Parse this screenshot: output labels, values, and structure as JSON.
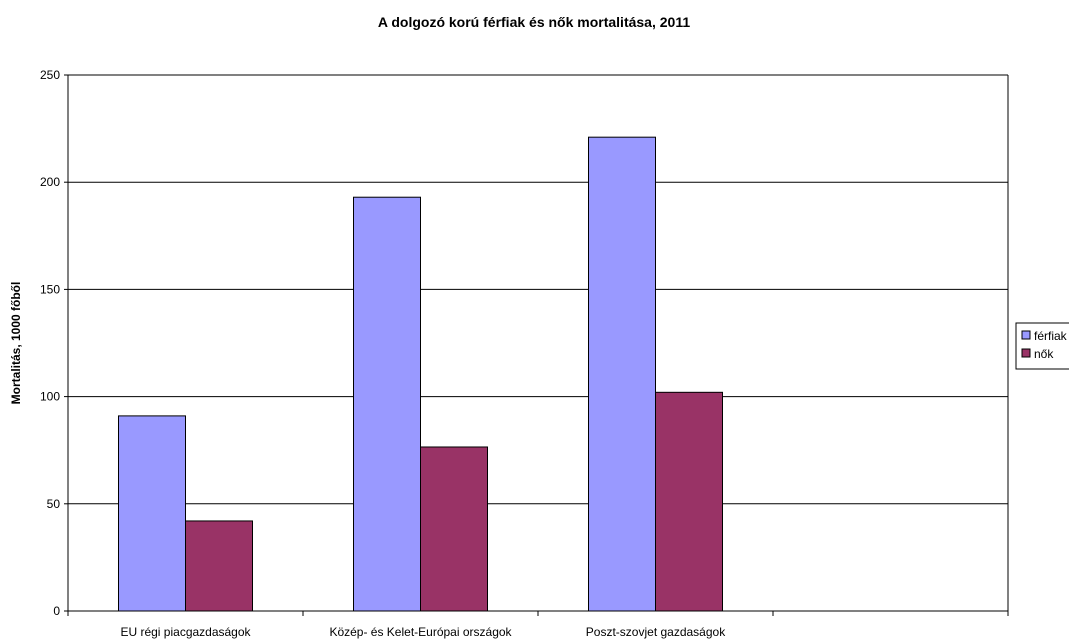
{
  "chart_data": {
    "type": "bar",
    "title": "A dolgozó korú férfiak és nők mortalitása, 2011",
    "xlabel": "",
    "ylabel": "Mortalitás, 1000 főből",
    "ylim": [
      0,
      250
    ],
    "yticks": [
      0,
      50,
      100,
      150,
      200,
      250
    ],
    "categories": [
      "EU régi piacgazdaságok",
      "Közép- és Kelet-Európai országok",
      "Poszt-szovjet gazdaságok",
      ""
    ],
    "series": [
      {
        "name": "férfiak",
        "color": "#9999ff",
        "values": [
          91,
          193,
          221,
          null
        ]
      },
      {
        "name": "nők",
        "color": "#993366",
        "values": [
          42,
          76.5,
          102,
          null
        ]
      }
    ],
    "grid": true,
    "legend": "right"
  }
}
